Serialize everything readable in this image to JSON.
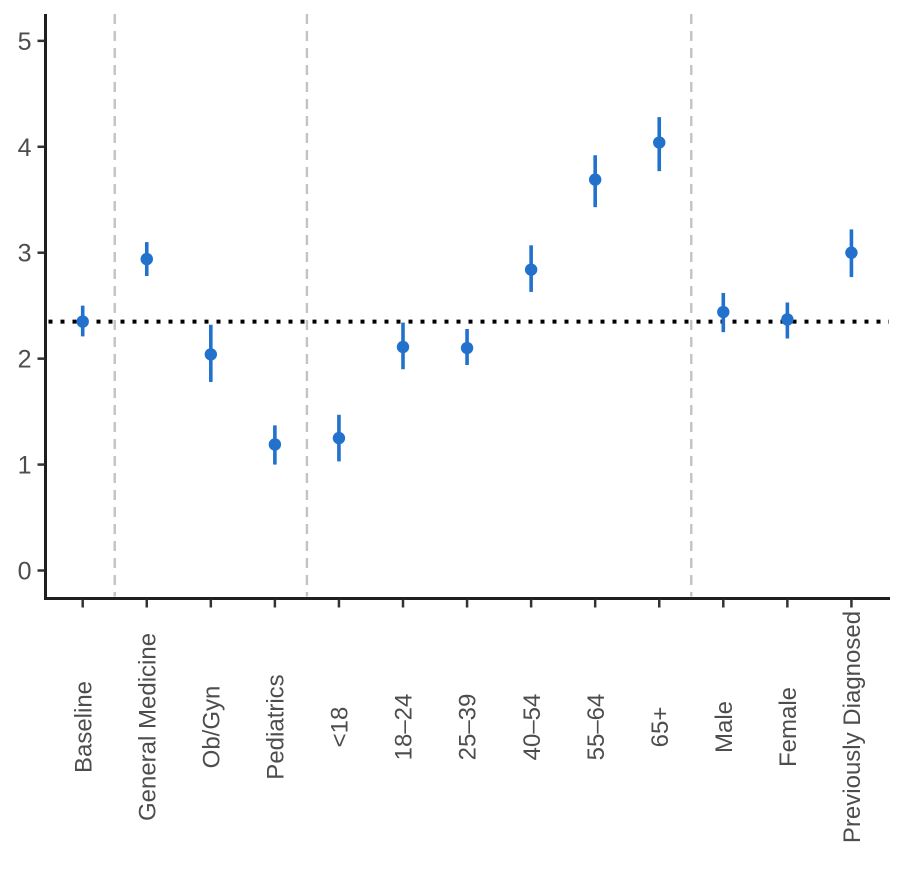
{
  "chart_data": {
    "type": "scatter",
    "subtype": "pointrange",
    "title": "",
    "xlabel": "",
    "ylabel": "",
    "ylim": [
      0,
      5.25
    ],
    "yticks": [
      0,
      1,
      2,
      3,
      4,
      5
    ],
    "grid": false,
    "legend_position": "none",
    "reference_line_y": 2.35,
    "reference_line_style": "dotted-black-horizontal",
    "separator_style": "dashed-gray-vertical",
    "separators_between": [
      [
        "Baseline",
        "General Medicine"
      ],
      [
        "Pediatrics",
        "<18"
      ],
      [
        "65+",
        "Male"
      ]
    ],
    "categories": [
      "Baseline",
      "General Medicine",
      "Ob/Gyn",
      "Pediatrics",
      "<18",
      "18–24",
      "25–39",
      "40–54",
      "55–64",
      "65+",
      "Male",
      "Female",
      "Previously Diagnosed"
    ],
    "points": [
      {
        "label": "Baseline",
        "value": 2.35,
        "lo": 2.21,
        "hi": 2.5
      },
      {
        "label": "General Medicine",
        "value": 2.94,
        "lo": 2.78,
        "hi": 3.1
      },
      {
        "label": "Ob/Gyn",
        "value": 2.04,
        "lo": 1.78,
        "hi": 2.32
      },
      {
        "label": "Pediatrics",
        "value": 1.19,
        "lo": 1.0,
        "hi": 1.37
      },
      {
        "label": "<18",
        "value": 1.25,
        "lo": 1.03,
        "hi": 1.47
      },
      {
        "label": "18–24",
        "value": 2.11,
        "lo": 1.9,
        "hi": 2.34
      },
      {
        "label": "25–39",
        "value": 2.1,
        "lo": 1.94,
        "hi": 2.28
      },
      {
        "label": "40–54",
        "value": 2.84,
        "lo": 2.63,
        "hi": 3.07
      },
      {
        "label": "55–64",
        "value": 3.69,
        "lo": 3.43,
        "hi": 3.92
      },
      {
        "label": "65+",
        "value": 4.04,
        "lo": 3.77,
        "hi": 4.28
      },
      {
        "label": "Male",
        "value": 2.44,
        "lo": 2.25,
        "hi": 2.62
      },
      {
        "label": "Female",
        "value": 2.37,
        "lo": 2.19,
        "hi": 2.53
      },
      {
        "label": "Previously Diagnosed",
        "value": 3.0,
        "lo": 2.77,
        "hi": 3.22
      }
    ],
    "colors": {
      "point": "#2171cd",
      "reference_line": "#000000",
      "separator": "#c3c3c3",
      "axis": "#1f1f1f",
      "tick": "#333333",
      "tick_label": "#4d4d4d",
      "background": "#ffffff"
    }
  }
}
